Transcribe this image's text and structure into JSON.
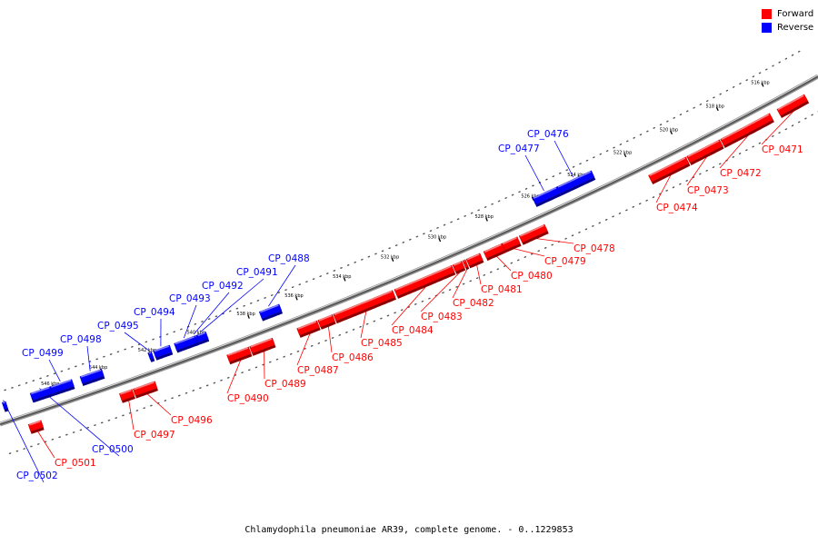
{
  "title": "Chlamydophila pneumoniae AR39, complete genome. - 0..1229853",
  "legend": {
    "forward_label": "Forward",
    "reverse_label": "Reverse",
    "forward_color": "#ff0000",
    "reverse_color": "#0000ff"
  },
  "ticks": [
    "516 kbp",
    "518 kbp",
    "520 kbp",
    "522 kbp",
    "524 kbp",
    "526 kbp",
    "528 kbp",
    "530 kbp",
    "532 kbp",
    "534 kbp",
    "536 kbp",
    "538 kbp",
    "540 kbp",
    "542 kbp",
    "544 kbp",
    "546 kbp"
  ],
  "genes": [
    {
      "name": "CP_0471",
      "strand": "forward"
    },
    {
      "name": "CP_0472",
      "strand": "forward"
    },
    {
      "name": "CP_0473",
      "strand": "forward"
    },
    {
      "name": "CP_0474",
      "strand": "forward"
    },
    {
      "name": "CP_0476",
      "strand": "reverse"
    },
    {
      "name": "CP_0477",
      "strand": "reverse"
    },
    {
      "name": "CP_0478",
      "strand": "forward"
    },
    {
      "name": "CP_0479",
      "strand": "forward"
    },
    {
      "name": "CP_0480",
      "strand": "forward"
    },
    {
      "name": "CP_0481",
      "strand": "forward"
    },
    {
      "name": "CP_0482",
      "strand": "forward"
    },
    {
      "name": "CP_0483",
      "strand": "forward"
    },
    {
      "name": "CP_0484",
      "strand": "forward"
    },
    {
      "name": "CP_0485",
      "strand": "forward"
    },
    {
      "name": "CP_0486",
      "strand": "forward"
    },
    {
      "name": "CP_0487",
      "strand": "forward"
    },
    {
      "name": "CP_0488",
      "strand": "reverse"
    },
    {
      "name": "CP_0489",
      "strand": "forward"
    },
    {
      "name": "CP_0490",
      "strand": "forward"
    },
    {
      "name": "CP_0491",
      "strand": "reverse"
    },
    {
      "name": "CP_0492",
      "strand": "reverse"
    },
    {
      "name": "CP_0493",
      "strand": "reverse"
    },
    {
      "name": "CP_0494",
      "strand": "reverse"
    },
    {
      "name": "CP_0495",
      "strand": "reverse"
    },
    {
      "name": "CP_0496",
      "strand": "forward"
    },
    {
      "name": "CP_0497",
      "strand": "forward"
    },
    {
      "name": "CP_0498",
      "strand": "reverse"
    },
    {
      "name": "CP_0499",
      "strand": "reverse"
    },
    {
      "name": "CP_0500",
      "strand": "reverse"
    },
    {
      "name": "CP_0501",
      "strand": "forward"
    },
    {
      "name": "CP_0502",
      "strand": "reverse"
    }
  ]
}
